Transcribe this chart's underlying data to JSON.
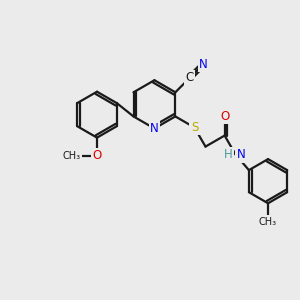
{
  "background_color": "#ebebeb",
  "bond_color": "#1a1a1a",
  "bond_width": 1.6,
  "atom_colors": {
    "C": "#1a1a1a",
    "N": "#0000ee",
    "O": "#dd0000",
    "S": "#bbaa00",
    "H": "#4a9a9a"
  },
  "font_size": 8.5
}
